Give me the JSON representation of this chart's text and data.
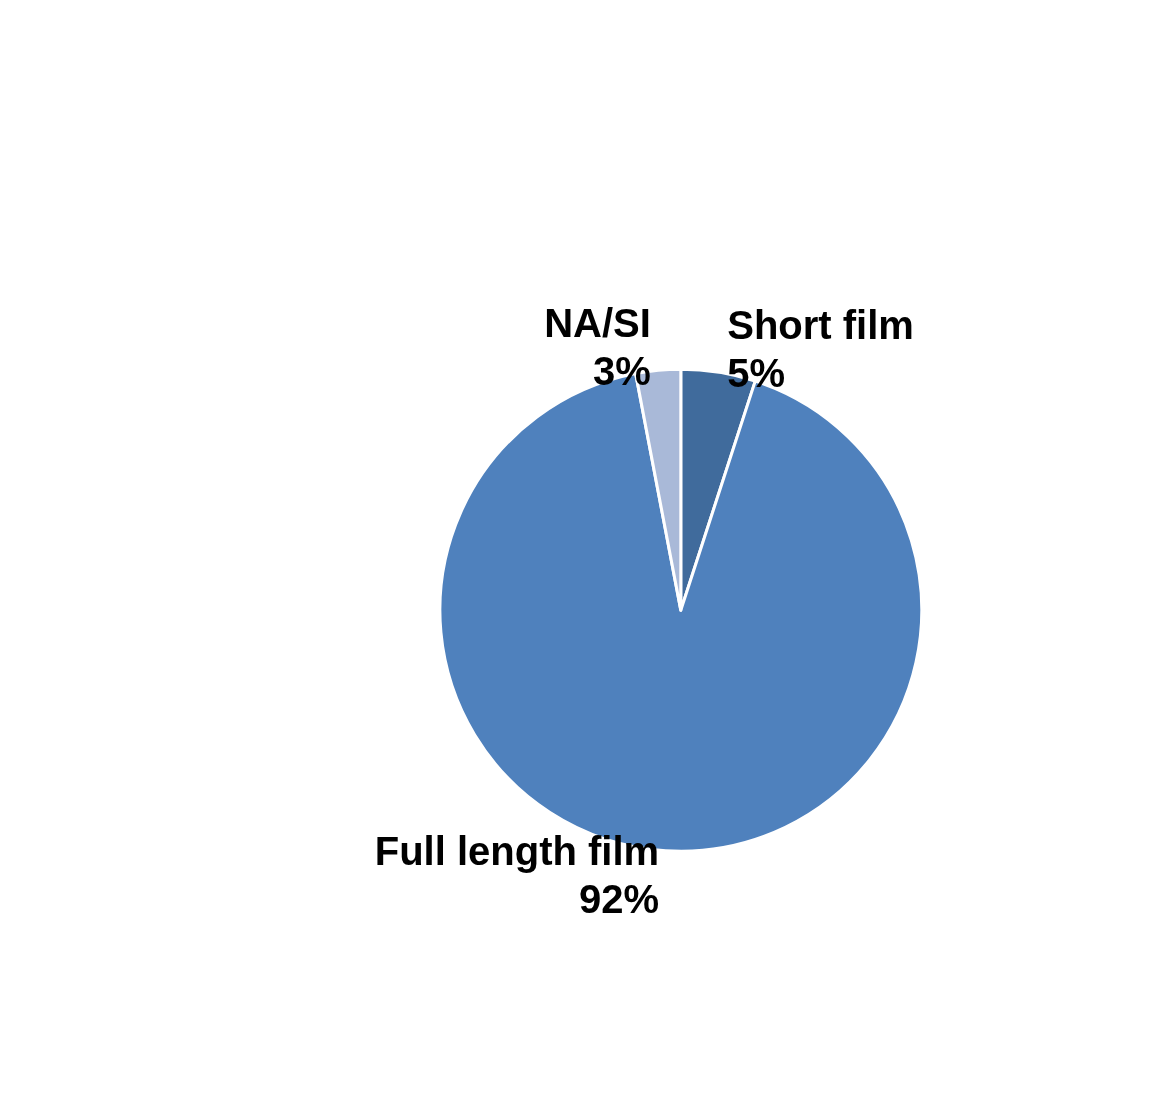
{
  "chart_data": {
    "type": "pie",
    "categories": [
      "Short film",
      "Full length film",
      "NA/SI"
    ],
    "values": [
      5,
      92,
      3
    ],
    "value_labels": [
      "5%",
      "92%",
      "3%"
    ],
    "colors": [
      "#406b9c",
      "#4f81bd",
      "#a9b9d8"
    ],
    "legend": false
  }
}
